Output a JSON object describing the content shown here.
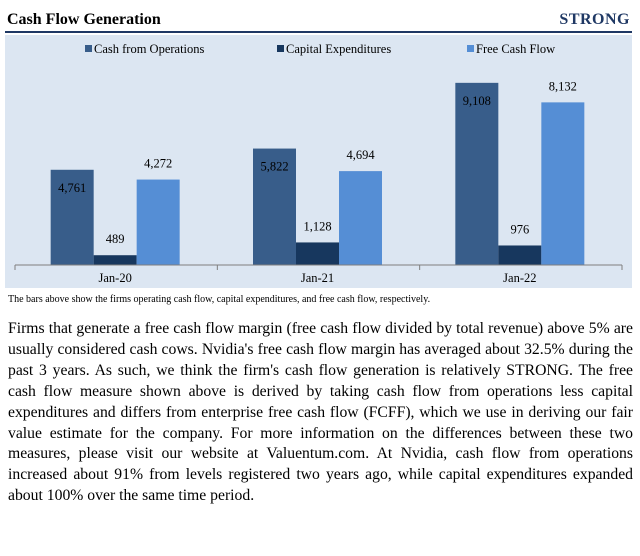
{
  "header": {
    "title": "Cash Flow Generation",
    "rating": "STRONG"
  },
  "colors": {
    "cash_from_operations": "#385d8a",
    "capital_expenditures": "#17375e",
    "free_cash_flow": "#558ed5",
    "chart_background": "#dce6f2",
    "axis": "#7f7f7f"
  },
  "chart_data": {
    "type": "bar",
    "title": "Cash Flow Generation",
    "categories": [
      "Jan-20",
      "Jan-21",
      "Jan-22"
    ],
    "series": [
      {
        "name": "Cash from Operations",
        "values": [
          4761,
          5822,
          9108
        ],
        "labels": [
          "4,761",
          "5,822",
          "9,108"
        ]
      },
      {
        "name": "Capital Expenditures",
        "values": [
          489,
          1128,
          976
        ],
        "labels": [
          "489",
          "1,128",
          "976"
        ]
      },
      {
        "name": "Free Cash Flow",
        "values": [
          4272,
          4694,
          8132
        ],
        "labels": [
          "4,272",
          "4,694",
          "8,132"
        ]
      }
    ],
    "ylim": [
      0,
      10000
    ],
    "xlabel": "",
    "ylabel": "",
    "grid": false,
    "legend": "top"
  },
  "caption": "The bars above show the firms operating cash flow, capital expenditures, and free cash flow, respectively.",
  "body_text": "Firms that generate a free cash flow margin (free cash flow divided by total revenue) above 5% are usually considered cash cows. Nvidia's free cash flow margin has averaged about 32.5% during the past 3 years. As such, we think the firm's cash flow generation is relatively STRONG. The free cash flow measure shown above is derived by taking cash flow from operations less capital expenditures and differs from enterprise free cash flow (FCFF), which we use in deriving our fair value estimate for the company. For more information on the differences between these two measures, please visit our website at Valuentum.com. At Nvidia, cash flow from operations increased about 91% from levels registered two years ago, while capital expenditures expanded about 100% over the same time period."
}
